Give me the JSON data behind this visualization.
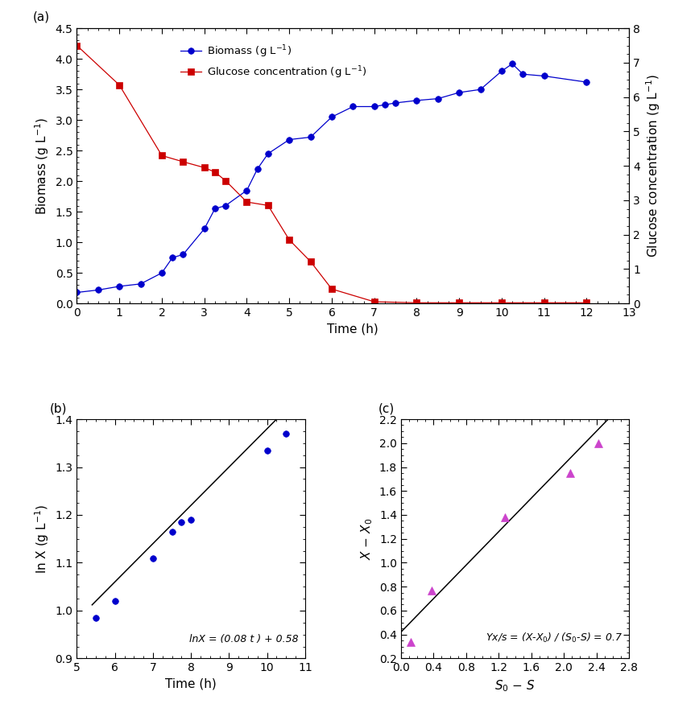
{
  "panel_a": {
    "title": "(a)",
    "biomass_time": [
      0,
      0.5,
      1,
      1.5,
      2,
      2.25,
      2.5,
      3,
      3.25,
      3.5,
      4,
      4.25,
      4.5,
      5,
      5.5,
      6,
      6.5,
      7,
      7.25,
      7.5,
      8,
      8.5,
      9,
      9.5,
      10,
      10.25,
      10.5,
      11,
      12
    ],
    "biomass_values": [
      0.18,
      0.22,
      0.28,
      0.32,
      0.5,
      0.75,
      0.8,
      1.22,
      1.55,
      1.6,
      1.85,
      2.2,
      2.45,
      2.68,
      2.72,
      3.05,
      3.22,
      3.22,
      3.25,
      3.28,
      3.32,
      3.35,
      3.45,
      3.5,
      3.8,
      3.92,
      3.75,
      3.72,
      3.62
    ],
    "glucose_time": [
      0,
      1,
      2,
      2.5,
      3,
      3.25,
      3.5,
      4,
      4.5,
      5,
      5.5,
      6,
      7,
      8,
      9,
      10,
      11,
      12
    ],
    "glucose_values": [
      7.5,
      6.35,
      4.3,
      4.12,
      3.95,
      3.82,
      3.57,
      2.95,
      2.85,
      1.85,
      1.22,
      0.42,
      0.05,
      0.02,
      0.02,
      0.02,
      0.02,
      0.02
    ],
    "biomass_color": "#0000cc",
    "glucose_color": "#cc0000",
    "xlabel": "Time (h)",
    "ylabel_left": "Biomass (g L$^{-1}$)",
    "ylabel_right": "Glucose concentration (g L$^{-1}$)",
    "xlim": [
      0,
      13
    ],
    "ylim_left": [
      0,
      4.5
    ],
    "ylim_right": [
      0,
      8
    ],
    "xticks": [
      0,
      1,
      2,
      3,
      4,
      5,
      6,
      7,
      8,
      9,
      10,
      11,
      12,
      13
    ],
    "yticks_left": [
      0.0,
      0.5,
      1.0,
      1.5,
      2.0,
      2.5,
      3.0,
      3.5,
      4.0,
      4.5
    ],
    "yticks_right": [
      0,
      1,
      2,
      3,
      4,
      5,
      6,
      7,
      8
    ],
    "legend_biomass": "Biomass (g L$^{-1}$)",
    "legend_glucose": "Glucose concentration (g L$^{-1}$)"
  },
  "panel_b": {
    "title": "(b)",
    "time": [
      5.5,
      6,
      7,
      7.5,
      7.75,
      8,
      10,
      10.5
    ],
    "lnX": [
      0.985,
      1.02,
      1.11,
      1.165,
      1.185,
      1.19,
      1.335,
      1.37
    ],
    "fit_time_start": 5.4,
    "fit_time_end": 10.7,
    "fit_slope": 0.08,
    "fit_intercept": 0.58,
    "color": "#0000cc",
    "line_color": "#000000",
    "xlabel": "Time (h)",
    "ylabel": "ln X (g L$^{-1}$)",
    "xlim": [
      5,
      11
    ],
    "ylim": [
      0.9,
      1.4
    ],
    "xticks": [
      5,
      6,
      7,
      8,
      9,
      10,
      11
    ],
    "yticks": [
      0.9,
      1.0,
      1.1,
      1.2,
      1.3,
      1.4
    ],
    "equation": "lnX = (0.08 t ) + 0.58"
  },
  "panel_c": {
    "title": "(c)",
    "S0_minus_S": [
      0.12,
      0.38,
      1.28,
      2.08,
      2.42
    ],
    "X_minus_X0": [
      0.34,
      0.77,
      1.38,
      1.75,
      2.0
    ],
    "fit_x_start": 0.0,
    "fit_x_end": 2.65,
    "fit_slope": 0.7,
    "fit_intercept": 0.42,
    "color": "#cc44cc",
    "line_color": "#000000",
    "xlabel": "$S_{0}$ $-$ $S$",
    "ylabel": "$X$ $-$ $X_{0}$",
    "xlim": [
      0,
      2.8
    ],
    "ylim": [
      0.2,
      2.2
    ],
    "xticks": [
      0.0,
      0.4,
      0.8,
      1.2,
      1.6,
      2.0,
      2.4,
      2.8
    ],
    "yticks": [
      0.2,
      0.4,
      0.6,
      0.8,
      1.0,
      1.2,
      1.4,
      1.6,
      1.8,
      2.0,
      2.2
    ],
    "equation": "Yx/s = (X-X$_{0}$) / (S$_{0}$-S) = 0.7"
  },
  "background_color": "#ffffff",
  "font_size": 11,
  "tick_size": 10
}
